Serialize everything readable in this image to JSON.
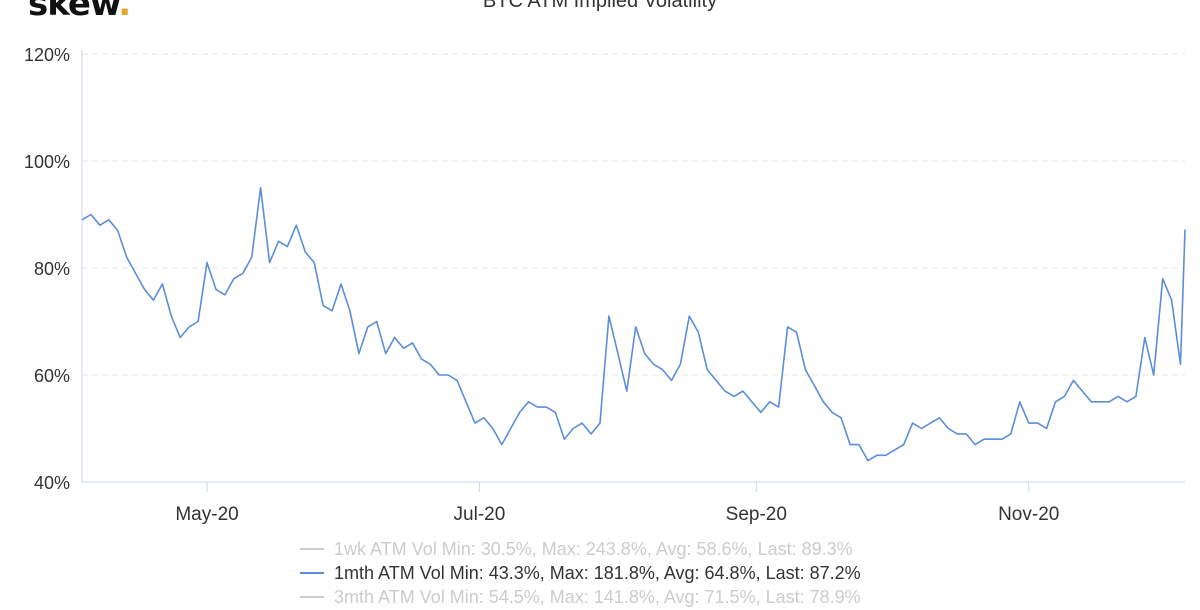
{
  "brand": {
    "logo_text": "skew",
    "logo_dot": ".",
    "accent": "#e3a72f"
  },
  "colors": {
    "series": "#5b8ed8",
    "grid": "#e6e6e6",
    "axis": "#ccd6eb",
    "inactive": "#cccccc",
    "text": "#333333"
  },
  "chart_data": {
    "type": "line",
    "title": "BTC ATM Implied Volatility",
    "xlabel": "",
    "ylabel": "",
    "x_range": [
      "2020-04-03",
      "2020-12-06"
    ],
    "ylim": [
      40,
      120
    ],
    "y_ticks": [
      40,
      60,
      80,
      100,
      120
    ],
    "y_tick_labels": [
      "40%",
      "60%",
      "80%",
      "100%",
      "120%"
    ],
    "x_ticks": [
      "2020-05-01",
      "2020-07-01",
      "2020-09-01",
      "2020-11-01"
    ],
    "x_tick_labels": [
      "May-20",
      "Jul-20",
      "Sep-20",
      "Nov-20"
    ],
    "grid": "horizontal",
    "legend_position": "bottom",
    "series": [
      {
        "name": "1mth ATM Vol",
        "visible": true,
        "x": [
          "2020-04-03",
          "2020-04-05",
          "2020-04-07",
          "2020-04-09",
          "2020-04-11",
          "2020-04-13",
          "2020-04-15",
          "2020-04-17",
          "2020-04-19",
          "2020-04-21",
          "2020-04-23",
          "2020-04-25",
          "2020-04-27",
          "2020-04-29",
          "2020-05-01",
          "2020-05-03",
          "2020-05-05",
          "2020-05-07",
          "2020-05-09",
          "2020-05-11",
          "2020-05-13",
          "2020-05-15",
          "2020-05-17",
          "2020-05-19",
          "2020-05-21",
          "2020-05-23",
          "2020-05-25",
          "2020-05-27",
          "2020-05-29",
          "2020-05-31",
          "2020-06-02",
          "2020-06-04",
          "2020-06-06",
          "2020-06-08",
          "2020-06-10",
          "2020-06-12",
          "2020-06-14",
          "2020-06-16",
          "2020-06-18",
          "2020-06-20",
          "2020-06-22",
          "2020-06-24",
          "2020-06-26",
          "2020-06-28",
          "2020-06-30",
          "2020-07-02",
          "2020-07-04",
          "2020-07-06",
          "2020-07-08",
          "2020-07-10",
          "2020-07-12",
          "2020-07-14",
          "2020-07-16",
          "2020-07-18",
          "2020-07-20",
          "2020-07-22",
          "2020-07-24",
          "2020-07-26",
          "2020-07-28",
          "2020-07-30",
          "2020-08-01",
          "2020-08-03",
          "2020-08-05",
          "2020-08-07",
          "2020-08-09",
          "2020-08-11",
          "2020-08-13",
          "2020-08-15",
          "2020-08-17",
          "2020-08-19",
          "2020-08-21",
          "2020-08-23",
          "2020-08-25",
          "2020-08-27",
          "2020-08-29",
          "2020-08-31",
          "2020-09-02",
          "2020-09-04",
          "2020-09-06",
          "2020-09-08",
          "2020-09-10",
          "2020-09-12",
          "2020-09-14",
          "2020-09-16",
          "2020-09-18",
          "2020-09-20",
          "2020-09-22",
          "2020-09-24",
          "2020-09-26",
          "2020-09-28",
          "2020-09-30",
          "2020-10-02",
          "2020-10-04",
          "2020-10-06",
          "2020-10-08",
          "2020-10-10",
          "2020-10-12",
          "2020-10-14",
          "2020-10-16",
          "2020-10-18",
          "2020-10-20",
          "2020-10-22",
          "2020-10-24",
          "2020-10-26",
          "2020-10-28",
          "2020-10-30",
          "2020-11-01",
          "2020-11-03",
          "2020-11-05",
          "2020-11-07",
          "2020-11-09",
          "2020-11-11",
          "2020-11-13",
          "2020-11-15",
          "2020-11-17",
          "2020-11-19",
          "2020-11-21",
          "2020-11-23",
          "2020-11-25",
          "2020-11-27",
          "2020-11-29",
          "2020-12-01",
          "2020-12-03",
          "2020-12-05",
          "2020-12-06"
        ],
        "y": [
          89,
          90,
          88,
          89,
          87,
          82,
          79,
          76,
          74,
          77,
          71,
          67,
          69,
          70,
          81,
          76,
          75,
          78,
          79,
          82,
          95,
          81,
          85,
          84,
          88,
          83,
          81,
          73,
          72,
          77,
          72,
          64,
          69,
          70,
          64,
          67,
          65,
          66,
          63,
          62,
          60,
          60,
          59,
          55,
          51,
          52,
          50,
          47,
          50,
          53,
          55,
          54,
          54,
          53,
          48,
          50,
          51,
          49,
          51,
          71,
          64,
          57,
          69,
          64,
          62,
          61,
          59,
          62,
          71,
          68,
          61,
          59,
          57,
          56,
          57,
          55,
          53,
          55,
          54,
          69,
          68,
          61,
          58,
          55,
          53,
          52,
          47,
          47,
          44,
          45,
          45,
          46,
          47,
          51,
          50,
          51,
          52,
          50,
          49,
          49,
          47,
          48,
          48,
          48,
          49,
          55,
          51,
          51,
          50,
          55,
          56,
          59,
          57,
          55,
          55,
          55,
          56,
          55,
          56,
          67,
          60,
          78,
          74,
          62,
          87.2
        ]
      }
    ],
    "legend": [
      {
        "name": "1wk ATM Vol",
        "stats": "Min: 30.5%, Max: 243.8%, Avg: 58.6%, Last: 89.3%",
        "state": "inactive"
      },
      {
        "name": "1mth ATM Vol",
        "stats": "Min: 43.3%, Max: 181.8%, Avg: 64.8%, Last: 87.2%",
        "state": "active"
      },
      {
        "name": "3mth ATM Vol",
        "stats": "Min: 54.5%, Max: 141.8%, Avg: 71.5%, Last: 78.9%",
        "state": "inactive"
      }
    ]
  }
}
